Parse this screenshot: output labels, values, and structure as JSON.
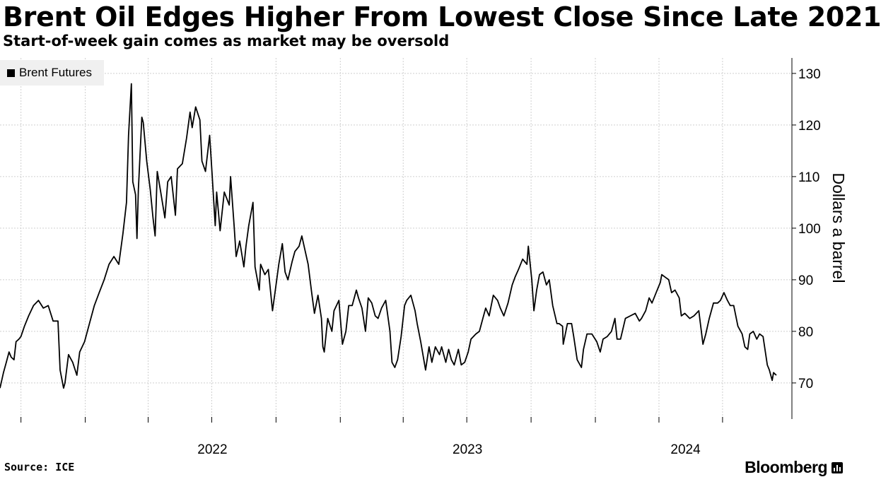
{
  "title": "Brent Oil Edges Higher From Lowest Close Since Late 2021",
  "subtitle": "Start-of-week gain comes as market may be oversold",
  "source": "Source: ICE",
  "brand": "Bloomberg",
  "chart_data": {
    "type": "line",
    "title": "Brent Oil Edges Higher From Lowest Close Since Late 2021",
    "subtitle": "Start-of-week gain comes as market may be oversold",
    "ylabel": "Dollars a barrel",
    "xlabel": "",
    "ylim": [
      63,
      133
    ],
    "yticks": [
      70,
      80,
      90,
      100,
      110,
      120,
      130
    ],
    "xlim": [
      "2021-09-01",
      "2024-09-16"
    ],
    "xtick_labels": [
      "2022",
      "2023",
      "2024"
    ],
    "legend_position": "top-left",
    "grid": true,
    "series": [
      {
        "name": "Brent Futures",
        "color": "#000000",
        "points": [
          [
            "2021-09-01",
            69
          ],
          [
            "2021-09-06",
            72
          ],
          [
            "2021-09-10",
            74
          ],
          [
            "2021-09-14",
            76
          ],
          [
            "2021-09-17",
            75
          ],
          [
            "2021-09-21",
            74.5
          ],
          [
            "2021-09-24",
            78
          ],
          [
            "2021-09-28",
            78.5
          ],
          [
            "2021-10-01",
            79
          ],
          [
            "2021-10-06",
            81
          ],
          [
            "2021-10-12",
            83
          ],
          [
            "2021-10-19",
            85
          ],
          [
            "2021-10-26",
            86
          ],
          [
            "2021-11-02",
            84.5
          ],
          [
            "2021-11-09",
            85
          ],
          [
            "2021-11-16",
            82
          ],
          [
            "2021-11-23",
            82
          ],
          [
            "2021-11-26",
            72.5
          ],
          [
            "2021-12-01",
            69
          ],
          [
            "2021-12-03",
            70
          ],
          [
            "2021-12-08",
            75.5
          ],
          [
            "2021-12-14",
            74
          ],
          [
            "2021-12-20",
            71.5
          ],
          [
            "2021-12-24",
            76
          ],
          [
            "2021-12-31",
            78
          ],
          [
            "2022-01-07",
            81.5
          ],
          [
            "2022-01-14",
            85
          ],
          [
            "2022-01-21",
            87.5
          ],
          [
            "2022-01-28",
            90
          ],
          [
            "2022-02-04",
            93
          ],
          [
            "2022-02-11",
            94.5
          ],
          [
            "2022-02-18",
            93
          ],
          [
            "2022-02-24",
            99
          ],
          [
            "2022-03-01",
            105
          ],
          [
            "2022-03-04",
            118
          ],
          [
            "2022-03-08",
            128
          ],
          [
            "2022-03-10",
            109
          ],
          [
            "2022-03-14",
            106.5
          ],
          [
            "2022-03-16",
            98
          ],
          [
            "2022-03-18",
            107.5
          ],
          [
            "2022-03-23",
            121.5
          ],
          [
            "2022-03-25",
            120.5
          ],
          [
            "2022-03-30",
            113
          ],
          [
            "2022-04-04",
            107.5
          ],
          [
            "2022-04-08",
            102
          ],
          [
            "2022-04-11",
            98.5
          ],
          [
            "2022-04-14",
            111
          ],
          [
            "2022-04-19",
            107
          ],
          [
            "2022-04-25",
            102
          ],
          [
            "2022-04-29",
            109
          ],
          [
            "2022-05-04",
            110
          ],
          [
            "2022-05-10",
            102.5
          ],
          [
            "2022-05-13",
            111.5
          ],
          [
            "2022-05-20",
            112.5
          ],
          [
            "2022-05-26",
            117.5
          ],
          [
            "2022-05-31",
            122.5
          ],
          [
            "2022-06-03",
            119.5
          ],
          [
            "2022-06-08",
            123.5
          ],
          [
            "2022-06-14",
            121
          ],
          [
            "2022-06-17",
            113
          ],
          [
            "2022-06-22",
            111
          ],
          [
            "2022-06-28",
            118
          ],
          [
            "2022-07-01",
            111.5
          ],
          [
            "2022-07-06",
            100.5
          ],
          [
            "2022-07-08",
            107
          ],
          [
            "2022-07-13",
            99.5
          ],
          [
            "2022-07-19",
            107
          ],
          [
            "2022-07-26",
            104.5
          ],
          [
            "2022-07-28",
            110
          ],
          [
            "2022-08-02",
            100.5
          ],
          [
            "2022-08-05",
            94.5
          ],
          [
            "2022-08-10",
            97.5
          ],
          [
            "2022-08-16",
            92.5
          ],
          [
            "2022-08-19",
            96.5
          ],
          [
            "2022-08-23",
            100.5
          ],
          [
            "2022-08-29",
            105
          ],
          [
            "2022-09-01",
            92.5
          ],
          [
            "2022-09-07",
            88
          ],
          [
            "2022-09-09",
            93
          ],
          [
            "2022-09-15",
            91
          ],
          [
            "2022-09-20",
            92
          ],
          [
            "2022-09-26",
            84
          ],
          [
            "2022-09-30",
            88
          ],
          [
            "2022-10-05",
            93
          ],
          [
            "2022-10-10",
            97
          ],
          [
            "2022-10-14",
            91.5
          ],
          [
            "2022-10-18",
            90
          ],
          [
            "2022-10-24",
            93.5
          ],
          [
            "2022-10-28",
            95.5
          ],
          [
            "2022-11-03",
            96.5
          ],
          [
            "2022-11-07",
            98.5
          ],
          [
            "2022-11-11",
            96
          ],
          [
            "2022-11-16",
            93
          ],
          [
            "2022-11-21",
            87.5
          ],
          [
            "2022-11-25",
            83.5
          ],
          [
            "2022-11-30",
            87
          ],
          [
            "2022-12-05",
            82.5
          ],
          [
            "2022-12-07",
            77
          ],
          [
            "2022-12-09",
            76
          ],
          [
            "2022-12-14",
            82.5
          ],
          [
            "2022-12-20",
            80
          ],
          [
            "2022-12-23",
            84
          ],
          [
            "2022-12-30",
            86
          ],
          [
            "2023-01-04",
            77.5
          ],
          [
            "2023-01-09",
            80
          ],
          [
            "2023-01-13",
            85
          ],
          [
            "2023-01-18",
            85
          ],
          [
            "2023-01-24",
            88
          ],
          [
            "2023-01-27",
            86.5
          ],
          [
            "2023-02-01",
            84.5
          ],
          [
            "2023-02-06",
            80
          ],
          [
            "2023-02-10",
            86.5
          ],
          [
            "2023-02-15",
            85.5
          ],
          [
            "2023-02-20",
            83
          ],
          [
            "2023-02-24",
            82.5
          ],
          [
            "2023-03-01",
            84.5
          ],
          [
            "2023-03-07",
            86
          ],
          [
            "2023-03-13",
            80
          ],
          [
            "2023-03-16",
            74
          ],
          [
            "2023-03-20",
            73
          ],
          [
            "2023-03-24",
            74.5
          ],
          [
            "2023-03-29",
            79
          ],
          [
            "2023-04-03",
            85
          ],
          [
            "2023-04-06",
            86
          ],
          [
            "2023-04-12",
            87
          ],
          [
            "2023-04-18",
            84
          ],
          [
            "2023-04-21",
            81.5
          ],
          [
            "2023-04-26",
            78
          ],
          [
            "2023-05-03",
            72.5
          ],
          [
            "2023-05-08",
            77
          ],
          [
            "2023-05-12",
            74
          ],
          [
            "2023-05-17",
            77
          ],
          [
            "2023-05-23",
            75.5
          ],
          [
            "2023-05-26",
            77
          ],
          [
            "2023-06-01",
            74
          ],
          [
            "2023-06-05",
            76.5
          ],
          [
            "2023-06-09",
            74.5
          ],
          [
            "2023-06-13",
            73.5
          ],
          [
            "2023-06-19",
            76.5
          ],
          [
            "2023-06-23",
            73.5
          ],
          [
            "2023-06-28",
            74
          ],
          [
            "2023-07-03",
            76
          ],
          [
            "2023-07-07",
            78.5
          ],
          [
            "2023-07-14",
            79.5
          ],
          [
            "2023-07-19",
            80
          ],
          [
            "2023-07-24",
            82.5
          ],
          [
            "2023-07-28",
            84.5
          ],
          [
            "2023-08-02",
            83
          ],
          [
            "2023-08-08",
            87
          ],
          [
            "2023-08-14",
            86
          ],
          [
            "2023-08-18",
            84.5
          ],
          [
            "2023-08-23",
            83
          ],
          [
            "2023-08-29",
            85.5
          ],
          [
            "2023-09-04",
            89
          ],
          [
            "2023-09-08",
            90.5
          ],
          [
            "2023-09-13",
            92
          ],
          [
            "2023-09-19",
            94
          ],
          [
            "2023-09-25",
            93
          ],
          [
            "2023-09-27",
            96.5
          ],
          [
            "2023-10-02",
            90
          ],
          [
            "2023-10-05",
            84
          ],
          [
            "2023-10-09",
            88
          ],
          [
            "2023-10-13",
            91
          ],
          [
            "2023-10-18",
            91.5
          ],
          [
            "2023-10-23",
            89
          ],
          [
            "2023-10-27",
            90
          ],
          [
            "2023-11-01",
            85
          ],
          [
            "2023-11-07",
            81.5
          ],
          [
            "2023-11-10",
            81.5
          ],
          [
            "2023-11-15",
            81
          ],
          [
            "2023-11-16",
            77.5
          ],
          [
            "2023-11-22",
            81.5
          ],
          [
            "2023-11-28",
            81.5
          ],
          [
            "2023-12-01",
            79
          ],
          [
            "2023-12-06",
            74.5
          ],
          [
            "2023-12-12",
            73
          ],
          [
            "2023-12-15",
            76.5
          ],
          [
            "2023-12-20",
            79.5
          ],
          [
            "2023-12-27",
            79.5
          ],
          [
            "2024-01-03",
            78
          ],
          [
            "2024-01-08",
            76
          ],
          [
            "2024-01-12",
            78.5
          ],
          [
            "2024-01-18",
            79
          ],
          [
            "2024-01-24",
            80
          ],
          [
            "2024-01-29",
            82.5
          ],
          [
            "2024-02-01",
            78.5
          ],
          [
            "2024-02-06",
            78.5
          ],
          [
            "2024-02-13",
            82.5
          ],
          [
            "2024-02-20",
            83
          ],
          [
            "2024-02-27",
            83.5
          ],
          [
            "2024-03-04",
            82
          ],
          [
            "2024-03-07",
            82.5
          ],
          [
            "2024-03-13",
            84
          ],
          [
            "2024-03-18",
            86.5
          ],
          [
            "2024-03-22",
            85.5
          ],
          [
            "2024-03-28",
            87.5
          ],
          [
            "2024-04-03",
            89.5
          ],
          [
            "2024-04-05",
            91
          ],
          [
            "2024-04-10",
            90.5
          ],
          [
            "2024-04-15",
            90
          ],
          [
            "2024-04-19",
            87.5
          ],
          [
            "2024-04-24",
            88
          ],
          [
            "2024-04-30",
            86.5
          ],
          [
            "2024-05-03",
            83
          ],
          [
            "2024-05-08",
            83.5
          ],
          [
            "2024-05-15",
            82.5
          ],
          [
            "2024-05-21",
            83
          ],
          [
            "2024-05-28",
            84
          ],
          [
            "2024-06-03",
            77.5
          ],
          [
            "2024-06-07",
            79.5
          ],
          [
            "2024-06-12",
            82.5
          ],
          [
            "2024-06-18",
            85.5
          ],
          [
            "2024-06-24",
            85.5
          ],
          [
            "2024-06-28",
            86
          ],
          [
            "2024-07-03",
            87.5
          ],
          [
            "2024-07-08",
            86
          ],
          [
            "2024-07-12",
            85
          ],
          [
            "2024-07-17",
            85
          ],
          [
            "2024-07-23",
            81
          ],
          [
            "2024-07-29",
            79.5
          ],
          [
            "2024-08-02",
            77
          ],
          [
            "2024-08-06",
            76.5
          ],
          [
            "2024-08-09",
            79.5
          ],
          [
            "2024-08-14",
            80
          ],
          [
            "2024-08-19",
            78.5
          ],
          [
            "2024-08-23",
            79.5
          ],
          [
            "2024-08-28",
            79
          ],
          [
            "2024-09-03",
            73.5
          ],
          [
            "2024-09-06",
            72.5
          ],
          [
            "2024-09-10",
            70.5
          ],
          [
            "2024-09-12",
            72
          ],
          [
            "2024-09-16",
            71.5
          ]
        ]
      }
    ]
  }
}
